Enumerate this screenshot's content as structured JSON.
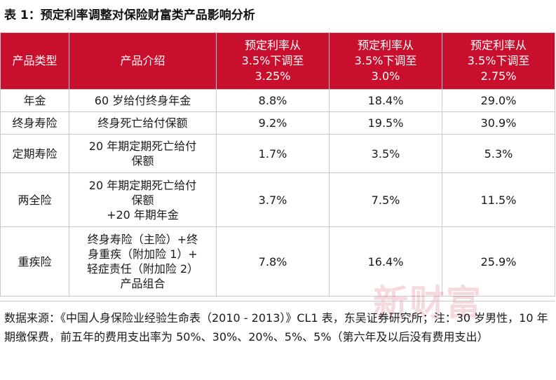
{
  "title": "表 1：预定利率调整对保险财富类产品影响分析",
  "colors": {
    "header_bg": "#c8102e",
    "header_text": "#ffffff",
    "border": "#c8c8c8",
    "watermark": "#c8102e"
  },
  "table": {
    "headers": [
      "产品类型",
      "产品介绍",
      "预定利率从\n3.5%下调至\n3.25%",
      "预定利率从\n3.5%下调至\n3.0%",
      "预定利率从\n3.5%下调至\n2.75%"
    ],
    "rows": [
      {
        "type": "年金",
        "desc": "60 岁给付终身年金",
        "v1": "8.8%",
        "v2": "18.4%",
        "v3": "29.0%"
      },
      {
        "type": "终身寿险",
        "desc": "终身死亡给付保额",
        "v1": "9.2%",
        "v2": "19.5%",
        "v3": "30.9%"
      },
      {
        "type": "定期寿险",
        "desc": "20 年期定期死亡给付\n保额",
        "v1": "1.7%",
        "v2": "3.5%",
        "v3": "5.3%"
      },
      {
        "type": "两全险",
        "desc": "20 年期定期死亡给付\n保额\n+20 年期年金",
        "v1": "3.7%",
        "v2": "7.5%",
        "v3": "11.5%"
      },
      {
        "type": "重疾险",
        "desc": "终身寿险（主险）+终\n身重疾（附加险 1）+\n轻症责任（附加险 2）\n产品组合",
        "v1": "7.8%",
        "v2": "16.4%",
        "v3": "25.9%"
      }
    ]
  },
  "footnote": "数据来源：《中国人身保险业经验生命表（2010 - 2013）》CL1 表，东吴证券研究所；注：30 岁男性，10 年期缴保费，前五年的费用支出率为 50%、30%、20%、5%、5%（第六年及以后没有费用支出）",
  "watermark": "新财富"
}
